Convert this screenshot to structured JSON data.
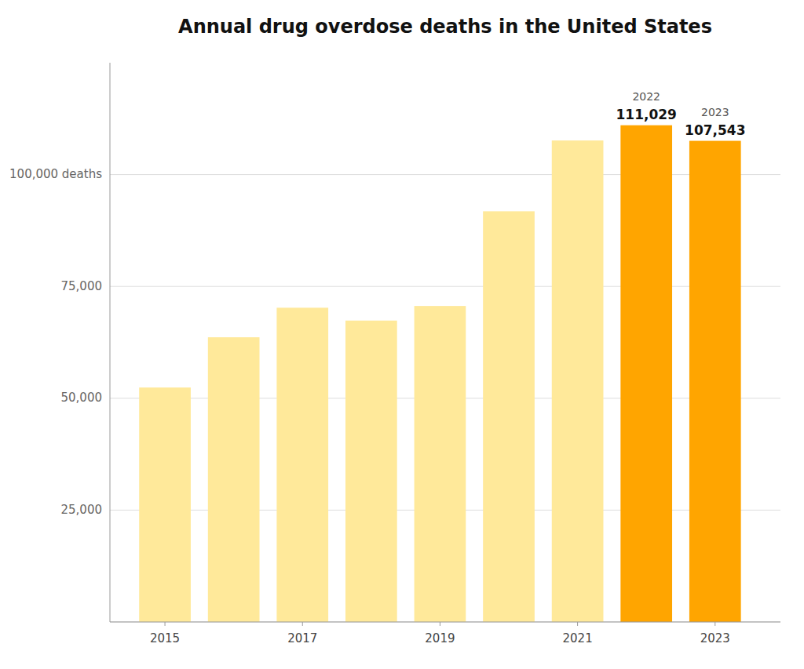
{
  "chart_data": {
    "type": "bar",
    "title": "Annual drug overdose deaths in the United States",
    "x": [
      2015,
      2016,
      2017,
      2018,
      2019,
      2020,
      2021,
      2022,
      2023
    ],
    "values": [
      52404,
      63632,
      70237,
      67367,
      70630,
      91799,
      107622,
      111029,
      107543
    ],
    "colors": [
      "#FFE99A",
      "#FFE99A",
      "#FFE99A",
      "#FFE99A",
      "#FFE99A",
      "#FFE99A",
      "#FFE99A",
      "#FFA500",
      "#FFA500"
    ],
    "xlim": [
      2014.2,
      2023.95
    ],
    "xticks": [
      2015,
      2017,
      2019,
      2021,
      2023
    ],
    "ylim": [
      0,
      125000
    ],
    "yticks": [
      {
        "value": 0,
        "label": null
      },
      {
        "value": 25000,
        "label": "25,000"
      },
      {
        "value": 50000,
        "label": "50,000"
      },
      {
        "value": 75000,
        "label": "75,000"
      },
      {
        "value": 100000,
        "label": "100,000 deaths"
      }
    ],
    "grid": true,
    "annotations": [
      {
        "x": 2022,
        "y": 111029,
        "year_label": "2022",
        "value_label": "111,029"
      },
      {
        "x": 2023,
        "y": 107543,
        "year_label": "2023",
        "value_label": "107,543"
      }
    ]
  }
}
